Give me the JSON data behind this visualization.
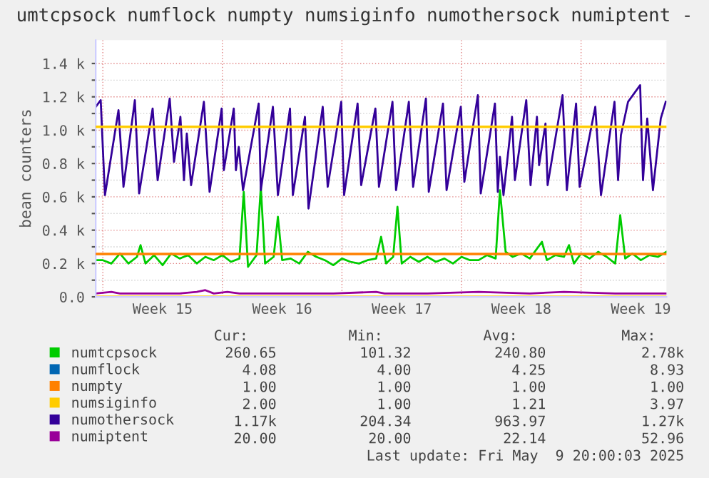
{
  "chart_data": {
    "type": "line",
    "title": "umtcpsock numflock numpty numsiginfo numothersock numiptent -",
    "ylabel": "bean counters",
    "xlim": [
      "2025-04-06T14:00",
      "2025-05-10T00:00"
    ],
    "xticks": [
      {
        "value": "2025-04-07T00:00",
        "label": null
      },
      {
        "value": "2025-04-10T12:00",
        "label": "Week 15"
      },
      {
        "value": "2025-04-14T00:00",
        "label": null
      },
      {
        "value": "2025-04-17T12:00",
        "label": "Week 16"
      },
      {
        "value": "2025-04-21T00:00",
        "label": null
      },
      {
        "value": "2025-04-24T12:00",
        "label": "Week 17"
      },
      {
        "value": "2025-04-28T00:00",
        "label": null
      },
      {
        "value": "2025-05-01T12:00",
        "label": "Week 18"
      },
      {
        "value": "2025-05-05T00:00",
        "label": null
      },
      {
        "value": "2025-05-08T12:00",
        "label": "Week 19"
      }
    ],
    "ylim": [
      0,
      1540
    ],
    "yticks": [
      {
        "value": 0,
        "label": "0.0"
      },
      {
        "value": 100,
        "label": null
      },
      {
        "value": 200,
        "label": "0.2 k"
      },
      {
        "value": 300,
        "label": null
      },
      {
        "value": 400,
        "label": "0.4 k"
      },
      {
        "value": 500,
        "label": null
      },
      {
        "value": 600,
        "label": "0.6 k"
      },
      {
        "value": 700,
        "label": null
      },
      {
        "value": 800,
        "label": "0.8 k"
      },
      {
        "value": 900,
        "label": null
      },
      {
        "value": 1000,
        "label": "1.0 k"
      },
      {
        "value": 1100,
        "label": null
      },
      {
        "value": 1200,
        "label": "1.2 k"
      },
      {
        "value": 1300,
        "label": null
      },
      {
        "value": 1400,
        "label": "1.4 k"
      }
    ],
    "grid": true,
    "legend": "bottom",
    "series": [
      {
        "name": "numtcpsock",
        "color": "#00cc00",
        "x": [
          "2025-04-06T14:00",
          "2025-04-07T00:00",
          "2025-04-07T12:00",
          "2025-04-08T00:00",
          "2025-04-08T12:00",
          "2025-04-09T00:00",
          "2025-04-09T05:00",
          "2025-04-09T12:00",
          "2025-04-10T00:00",
          "2025-04-10T12:00",
          "2025-04-11T00:00",
          "2025-04-11T12:00",
          "2025-04-12T00:00",
          "2025-04-12T12:00",
          "2025-04-13T00:00",
          "2025-04-13T12:00",
          "2025-04-14T00:00",
          "2025-04-14T12:00",
          "2025-04-15T00:00",
          "2025-04-15T06:00",
          "2025-04-15T12:00",
          "2025-04-16T00:00",
          "2025-04-16T06:00",
          "2025-04-16T12:00",
          "2025-04-17T00:00",
          "2025-04-17T06:00",
          "2025-04-17T12:00",
          "2025-04-18T00:00",
          "2025-04-18T12:00",
          "2025-04-19T00:00",
          "2025-04-19T12:00",
          "2025-04-20T00:00",
          "2025-04-20T12:00",
          "2025-04-21T00:00",
          "2025-04-21T12:00",
          "2025-04-22T00:00",
          "2025-04-22T12:00",
          "2025-04-23T00:00",
          "2025-04-23T07:00",
          "2025-04-23T14:00",
          "2025-04-24T00:00",
          "2025-04-24T06:00",
          "2025-04-24T12:00",
          "2025-04-25T00:00",
          "2025-04-25T12:00",
          "2025-04-26T00:00",
          "2025-04-26T12:00",
          "2025-04-27T00:00",
          "2025-04-27T12:00",
          "2025-04-28T00:00",
          "2025-04-28T12:00",
          "2025-04-29T00:00",
          "2025-04-29T12:00",
          "2025-04-30T00:00",
          "2025-04-30T06:00",
          "2025-04-30T14:00",
          "2025-05-01T00:00",
          "2025-05-01T12:00",
          "2025-05-02T00:00",
          "2025-05-02T17:00",
          "2025-05-03T00:00",
          "2025-05-03T12:00",
          "2025-05-04T00:00",
          "2025-05-04T07:00",
          "2025-05-04T14:00",
          "2025-05-05T00:00",
          "2025-05-05T12:00",
          "2025-05-06T00:00",
          "2025-05-06T12:00",
          "2025-05-07T00:00",
          "2025-05-07T07:00",
          "2025-05-07T14:00",
          "2025-05-08T00:00",
          "2025-05-08T12:00",
          "2025-05-09T00:00",
          "2025-05-09T12:00",
          "2025-05-10T00:00"
        ],
        "values": [
          220,
          220,
          200,
          260,
          200,
          240,
          310,
          200,
          250,
          190,
          260,
          230,
          250,
          200,
          240,
          220,
          250,
          210,
          230,
          630,
          180,
          250,
          660,
          200,
          240,
          480,
          220,
          230,
          200,
          270,
          240,
          220,
          190,
          230,
          210,
          200,
          220,
          230,
          360,
          200,
          240,
          540,
          200,
          240,
          210,
          240,
          210,
          230,
          200,
          240,
          220,
          220,
          250,
          230,
          640,
          270,
          240,
          260,
          230,
          330,
          220,
          250,
          240,
          310,
          200,
          260,
          230,
          270,
          240,
          200,
          490,
          230,
          260,
          220,
          250,
          240,
          270
        ]
      },
      {
        "name": "numflock",
        "color": "#0066b3"
      },
      {
        "name": "numpty",
        "color": "#ff8000"
      },
      {
        "name": "numsiginfo",
        "color": "#ffcc00",
        "x": [
          "2025-04-06T14:00",
          "2025-05-10T00:00"
        ],
        "values": [
          2,
          2
        ]
      },
      {
        "name": "numothersock",
        "color": "#330099",
        "x": [
          "2025-04-06T14:00",
          "2025-04-06T21:00",
          "2025-04-07T03:00",
          "2025-04-07T22:00",
          "2025-04-08T05:00",
          "2025-04-08T21:00",
          "2025-04-09T03:00",
          "2025-04-09T22:00",
          "2025-04-10T05:00",
          "2025-04-10T22:00",
          "2025-04-11T04:00",
          "2025-04-11T13:00",
          "2025-04-11T18:00",
          "2025-04-11T22:00",
          "2025-04-12T04:00",
          "2025-04-12T22:00",
          "2025-04-13T06:00",
          "2025-04-13T23:00",
          "2025-04-14T02:00",
          "2025-04-14T16:00",
          "2025-04-14T19:00",
          "2025-04-14T23:00",
          "2025-04-15T05:00",
          "2025-04-16T03:00",
          "2025-04-16T06:00",
          "2025-04-16T23:00",
          "2025-04-17T06:00",
          "2025-04-17T23:00",
          "2025-04-18T03:00",
          "2025-04-18T20:00",
          "2025-04-19T01:00",
          "2025-04-19T21:00",
          "2025-04-20T04:00",
          "2025-04-20T23:00",
          "2025-04-21T03:00",
          "2025-04-21T22:00",
          "2025-04-22T03:00",
          "2025-04-22T23:00",
          "2025-04-23T04:00",
          "2025-04-23T23:00",
          "2025-04-24T04:00",
          "2025-04-24T22:00",
          "2025-04-25T04:00",
          "2025-04-25T22:00",
          "2025-04-26T02:00",
          "2025-04-26T22:00",
          "2025-04-27T03:00",
          "2025-04-27T23:00",
          "2025-04-28T04:00",
          "2025-04-28T23:00",
          "2025-04-29T03:00",
          "2025-04-29T23:00",
          "2025-04-30T03:00",
          "2025-04-30T06:00",
          "2025-04-30T11:00",
          "2025-04-30T23:00",
          "2025-05-01T03:00",
          "2025-05-01T19:00",
          "2025-05-02T01:00",
          "2025-05-02T10:00",
          "2025-05-02T13:00",
          "2025-05-02T22:00",
          "2025-05-03T01:00",
          "2025-05-03T22:00",
          "2025-05-04T04:00",
          "2025-05-04T17:00",
          "2025-05-04T22:00",
          "2025-05-05T20:00",
          "2025-05-06T04:00",
          "2025-05-06T23:00",
          "2025-05-07T04:00",
          "2025-05-07T08:00",
          "2025-05-07T18:00",
          "2025-05-08T11:00",
          "2025-05-08T15:00",
          "2025-05-08T21:00",
          "2025-05-09T05:00",
          "2025-05-09T16:00",
          "2025-05-09T23:00"
        ],
        "values": [
          1140,
          1180,
          610,
          1120,
          660,
          1180,
          620,
          1130,
          700,
          1190,
          810,
          1080,
          700,
          980,
          670,
          1170,
          630,
          1130,
          760,
          1130,
          760,
          900,
          640,
          1160,
          640,
          1140,
          610,
          1130,
          610,
          1080,
          530,
          1140,
          660,
          1170,
          610,
          1160,
          670,
          1130,
          660,
          1170,
          640,
          1170,
          660,
          1190,
          630,
          1160,
          640,
          1140,
          690,
          1210,
          620,
          1160,
          630,
          840,
          610,
          1080,
          700,
          1180,
          670,
          1080,
          790,
          1040,
          670,
          1210,
          640,
          1160,
          660,
          1140,
          610,
          1170,
          700,
          970,
          1170,
          1270,
          700,
          1070,
          640,
          1070,
          1170
        ]
      },
      {
        "name": "numiptent",
        "color": "#990099",
        "x": [
          "2025-04-06T14:00",
          "2025-04-07T12:00",
          "2025-04-08T00:00",
          "2025-04-08T12:00",
          "2025-04-11T12:00",
          "2025-04-12T12:00",
          "2025-04-13T00:00",
          "2025-04-13T12:00",
          "2025-04-14T07:00",
          "2025-04-15T00:00",
          "2025-04-19T00:00",
          "2025-04-20T12:00",
          "2025-04-23T00:00",
          "2025-04-23T12:00",
          "2025-04-26T00:00",
          "2025-04-29T00:00",
          "2025-05-02T00:00",
          "2025-05-04T00:00",
          "2025-05-07T00:00",
          "2025-05-10T00:00"
        ],
        "values": [
          20,
          30,
          20,
          20,
          20,
          30,
          40,
          20,
          30,
          20,
          20,
          20,
          30,
          20,
          20,
          30,
          20,
          30,
          20,
          20
        ]
      }
    ],
    "ref_lines": [
      {
        "axis": "y",
        "value": 257,
        "color": "#ff8000"
      },
      {
        "axis": "y",
        "value": 1020,
        "color": "#ffcc00"
      }
    ],
    "annotations": [
      "Cur:",
      "Min:",
      "Avg:",
      "Max:",
      "260.65",
      "101.32",
      "240.80",
      "2.78k",
      "4.08",
      "4.00",
      "4.25",
      "8.93",
      "1.00",
      "1.00",
      "1.00",
      "1.00",
      "2.00",
      "1.00",
      "1.21",
      "3.97",
      "1.17k",
      "204.34",
      "963.97",
      "1.27k",
      "20.00",
      "20.00",
      "22.14",
      "52.96",
      "Last update: Fri May  9 20:00:03 2025"
    ]
  }
}
